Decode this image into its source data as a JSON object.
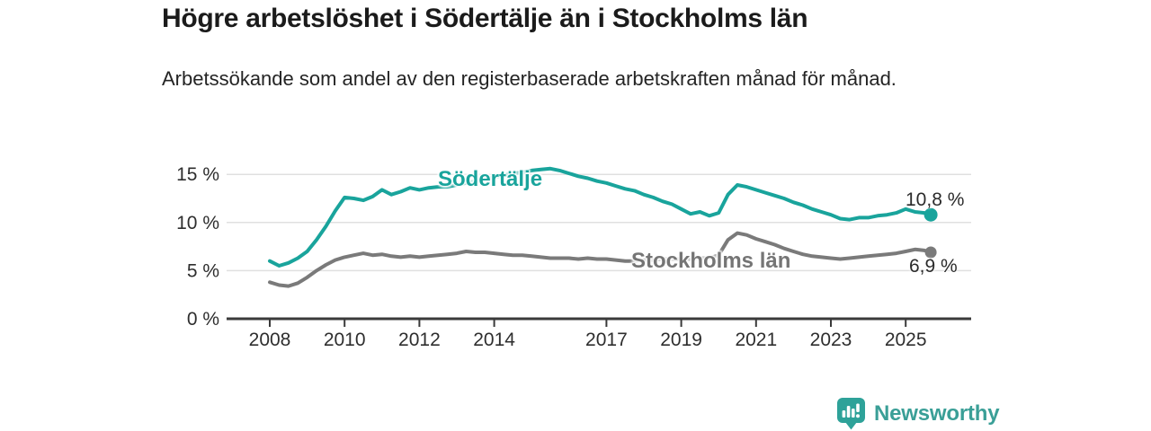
{
  "title": "Högre arbetslöshet i Södertälje än i Stockholms län",
  "subtitle": "Arbetssökande som andel av den registerbaserade arbetskraften månad för månad.",
  "branding": {
    "logo_text": "Newsworthy",
    "logo_icon": "bar-chart-pin-icon",
    "logo_color": "#3a9f97"
  },
  "chart_data": {
    "type": "line",
    "title": "Högre arbetslöshet i Södertälje än i Stockholms län",
    "subtitle": "Arbetssökande som andel av den registerbaserade arbetskraften månad för månad.",
    "unit": "percent",
    "grid": "horizontal",
    "legend_position": "inline-labels",
    "axis_color": "#3a3a3a",
    "grid_color": "#e0e0e0",
    "tick_text_color": "#2e2e2e",
    "annotation_text_color": "#2b2b2b",
    "ylim": [
      0,
      16.8
    ],
    "xlim": [
      2006.85,
      2026.75
    ],
    "yticks": [
      {
        "value": 0,
        "label": "0 %"
      },
      {
        "value": 5,
        "label": "5 %"
      },
      {
        "value": 10,
        "label": "10 %"
      },
      {
        "value": 15,
        "label": "15 %"
      }
    ],
    "xticks": [
      {
        "value": 2008,
        "label": "2008"
      },
      {
        "value": 2010,
        "label": "2010"
      },
      {
        "value": 2012,
        "label": "2012"
      },
      {
        "value": 2014,
        "label": "2014"
      },
      {
        "value": 2017,
        "label": "2017"
      },
      {
        "value": 2019,
        "label": "2019"
      },
      {
        "value": 2021,
        "label": "2021"
      },
      {
        "value": 2023,
        "label": "2023"
      },
      {
        "value": 2025,
        "label": "2025"
      }
    ],
    "x": [
      2008,
      2008.25,
      2008.5,
      2008.75,
      2009,
      2009.25,
      2009.5,
      2009.75,
      2010,
      2010.25,
      2010.5,
      2010.75,
      2011,
      2011.25,
      2011.5,
      2011.75,
      2012,
      2012.25,
      2012.5,
      2012.75,
      2013,
      2013.25,
      2013.5,
      2013.75,
      2014,
      2014.25,
      2014.5,
      2014.75,
      2015,
      2015.25,
      2015.5,
      2015.75,
      2016,
      2016.25,
      2016.5,
      2016.75,
      2017,
      2017.25,
      2017.5,
      2017.75,
      2018,
      2018.25,
      2018.5,
      2018.75,
      2019,
      2019.25,
      2019.5,
      2019.75,
      2020,
      2020.25,
      2020.5,
      2020.75,
      2021,
      2021.25,
      2021.5,
      2021.75,
      2022,
      2022.25,
      2022.5,
      2022.75,
      2023,
      2023.25,
      2023.5,
      2023.75,
      2024,
      2024.25,
      2024.5,
      2024.75,
      2025,
      2025.25,
      2025.5,
      2025.67
    ],
    "series": [
      {
        "name": "Södertälje",
        "color": "#19a49c",
        "end_label": "10,8 %",
        "end_value": 10.8,
        "values": [
          6.0,
          5.5,
          5.8,
          6.3,
          7.0,
          8.2,
          9.6,
          11.2,
          12.6,
          12.5,
          12.3,
          12.7,
          13.4,
          12.9,
          13.2,
          13.6,
          13.4,
          13.6,
          13.7,
          13.7,
          13.9,
          14.1,
          14.3,
          14.5,
          14.7,
          14.9,
          15.1,
          15.2,
          15.4,
          15.5,
          15.6,
          15.4,
          15.1,
          14.8,
          14.6,
          14.3,
          14.1,
          13.8,
          13.5,
          13.3,
          12.9,
          12.6,
          12.2,
          11.9,
          11.4,
          10.9,
          11.1,
          10.7,
          11.0,
          12.9,
          13.9,
          13.7,
          13.4,
          13.1,
          12.8,
          12.5,
          12.1,
          11.8,
          11.4,
          11.1,
          10.8,
          10.4,
          10.3,
          10.5,
          10.5,
          10.7,
          10.8,
          11.0,
          11.4,
          11.1,
          11.0,
          10.8
        ]
      },
      {
        "name": "Stockholms län",
        "color": "#7a7a7a",
        "end_label": "6,9 %",
        "end_value": 6.9,
        "values": [
          3.8,
          3.5,
          3.4,
          3.7,
          4.3,
          5.0,
          5.6,
          6.1,
          6.4,
          6.6,
          6.8,
          6.6,
          6.7,
          6.5,
          6.4,
          6.5,
          6.4,
          6.5,
          6.6,
          6.7,
          6.8,
          7.0,
          6.9,
          6.9,
          6.8,
          6.7,
          6.6,
          6.6,
          6.5,
          6.4,
          6.3,
          6.3,
          6.3,
          6.2,
          6.3,
          6.2,
          6.2,
          6.1,
          6.0,
          6.0,
          6.1,
          6.1,
          6.2,
          6.2,
          6.2,
          6.2,
          6.3,
          6.3,
          6.6,
          8.2,
          8.9,
          8.7,
          8.3,
          8.0,
          7.7,
          7.3,
          7.0,
          6.7,
          6.5,
          6.4,
          6.3,
          6.2,
          6.3,
          6.4,
          6.5,
          6.6,
          6.7,
          6.8,
          7.0,
          7.2,
          7.1,
          6.9
        ]
      }
    ]
  }
}
